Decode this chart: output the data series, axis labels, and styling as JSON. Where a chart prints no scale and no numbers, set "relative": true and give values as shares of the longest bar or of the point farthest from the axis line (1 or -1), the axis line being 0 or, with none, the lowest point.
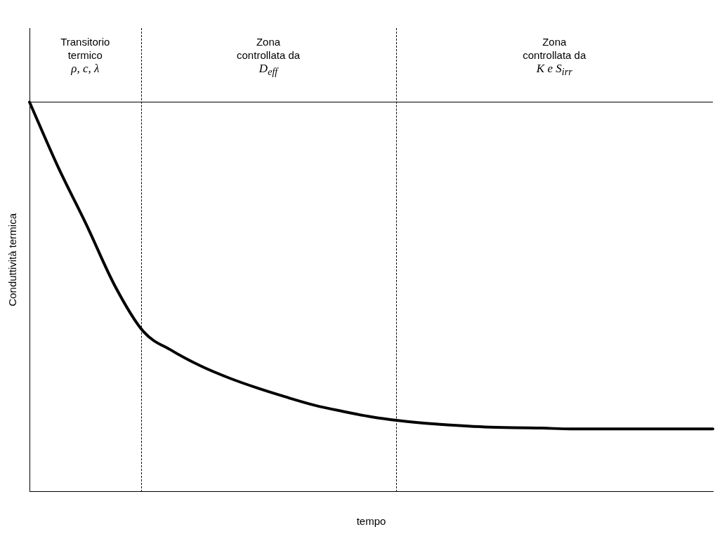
{
  "chart_data": {
    "type": "line",
    "relative": true,
    "xlabel": "tempo",
    "ylabel": "Conduttività termica",
    "categories": [
      null,
      null,
      null,
      null,
      null,
      null,
      null,
      null,
      null,
      null,
      null,
      null,
      null,
      null,
      null,
      null,
      null,
      null,
      null,
      null,
      null,
      null,
      null,
      null,
      null
    ],
    "series": [
      {
        "color": "#000000",
        "values": [
          1,
          0.834,
          0.685,
          0.528,
          0.411,
          0.362,
          0.323,
          0.292,
          0.266,
          0.243,
          0.222,
          0.206,
          0.192,
          0.182,
          0.175,
          0.17,
          0.166,
          0.164,
          0.163,
          0.161,
          0.161,
          0.161,
          0.161,
          0.161,
          0.161
        ]
      }
    ],
    "ref_lines": [
      {
        "axis": "y",
        "value": 1,
        "color": "#000000",
        "line_style": "solid"
      }
    ],
    "annotations": [
      "Transitorio\ntermico\nρ, c, λ",
      "Zona\ncontrollata da\nD$_{eff}$",
      "Zona\ncontrollata da\nK e S$_{irr}$"
    ],
    "grid": false,
    "legend": false,
    "marker": "none",
    "line_style": "solid"
  }
}
